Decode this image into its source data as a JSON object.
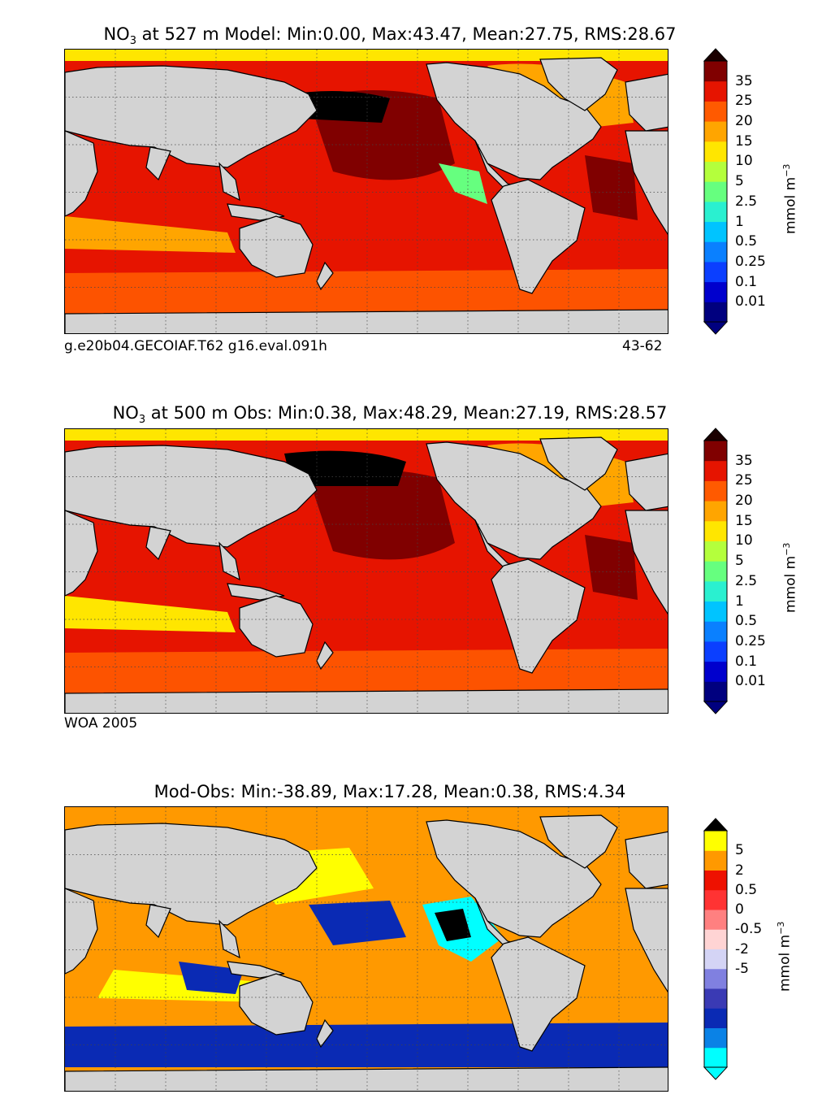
{
  "chart_data": [
    {
      "type": "heatmap",
      "title_prefix": "NO",
      "title_sub": "3",
      "title_rest": " at 527 m Model: Min:0.00, Max:43.47, Mean:27.75, RMS:28.67",
      "stats": {
        "depth_m": 527,
        "source": "Model",
        "min": 0.0,
        "max": 43.47,
        "mean": 27.75,
        "rms": 28.67
      },
      "footer_left": "g.e20b04.GECOIAF.T62 g16.eval.091h",
      "footer_right": "43-62",
      "colorbar_label": "mmol m",
      "colorbar_exp": "−3",
      "colorbar_ticks": [
        "35",
        "25",
        "20",
        "15",
        "10",
        "5",
        "2.5",
        "1",
        "0.5",
        "0.25",
        "0.1",
        "0.01"
      ],
      "colorbar_colors": [
        "#00007f",
        "#0000cd",
        "#0b3fff",
        "#0a80ff",
        "#00c4ff",
        "#2af0d0",
        "#66ff7f",
        "#b4ff3c",
        "#ffe600",
        "#ffa500",
        "#ff5a00",
        "#e61400",
        "#800000"
      ],
      "extend_low_color": "#00007f",
      "extend_high_color": "#1a0000",
      "ocean_base": "#e61400"
    },
    {
      "type": "heatmap",
      "title_prefix": "NO",
      "title_sub": "3",
      "title_rest": " at 500 m Obs: Min:0.38, Max:48.29, Mean:27.19, RMS:28.57",
      "stats": {
        "depth_m": 500,
        "source": "Obs",
        "min": 0.38,
        "max": 48.29,
        "mean": 27.19,
        "rms": 28.57
      },
      "footer_left": "WOA 2005",
      "footer_right": "",
      "colorbar_label": "mmol m",
      "colorbar_exp": "−3",
      "colorbar_ticks": [
        "35",
        "25",
        "20",
        "15",
        "10",
        "5",
        "2.5",
        "1",
        "0.5",
        "0.25",
        "0.1",
        "0.01"
      ],
      "colorbar_colors": [
        "#00007f",
        "#0000cd",
        "#0b3fff",
        "#0a80ff",
        "#00c4ff",
        "#2af0d0",
        "#66ff7f",
        "#b4ff3c",
        "#ffe600",
        "#ffa500",
        "#ff5a00",
        "#e61400",
        "#800000"
      ],
      "extend_low_color": "#00007f",
      "extend_high_color": "#1a0000",
      "ocean_base": "#e61400"
    },
    {
      "type": "heatmap",
      "title_prefix": "",
      "title_sub": "",
      "title_rest": "Mod-Obs: Min:-38.89, Max:17.28, Mean:0.38, RMS:4.34",
      "stats": {
        "source": "Mod-Obs",
        "min": -38.89,
        "max": 17.28,
        "mean": 0.38,
        "rms": 4.34
      },
      "footer_left": "",
      "footer_right": "",
      "colorbar_label": "mmol m",
      "colorbar_exp": "−3",
      "colorbar_ticks": [
        "5",
        "2",
        "0.5",
        "0",
        "-0.5",
        "-2",
        "-5"
      ],
      "colorbar_colors": [
        "#00ffff",
        "#0a82e6",
        "#0a2ab4",
        "#3a3ab4",
        "#8080e0",
        "#d4d4f5",
        "#ffd4d4",
        "#ff8080",
        "#ff3333",
        "#ee1100",
        "#ff9900",
        "#ffff00"
      ],
      "extend_low_color": "#00ffff",
      "extend_high_color": "#000000",
      "ocean_base": "#ff9900"
    }
  ]
}
